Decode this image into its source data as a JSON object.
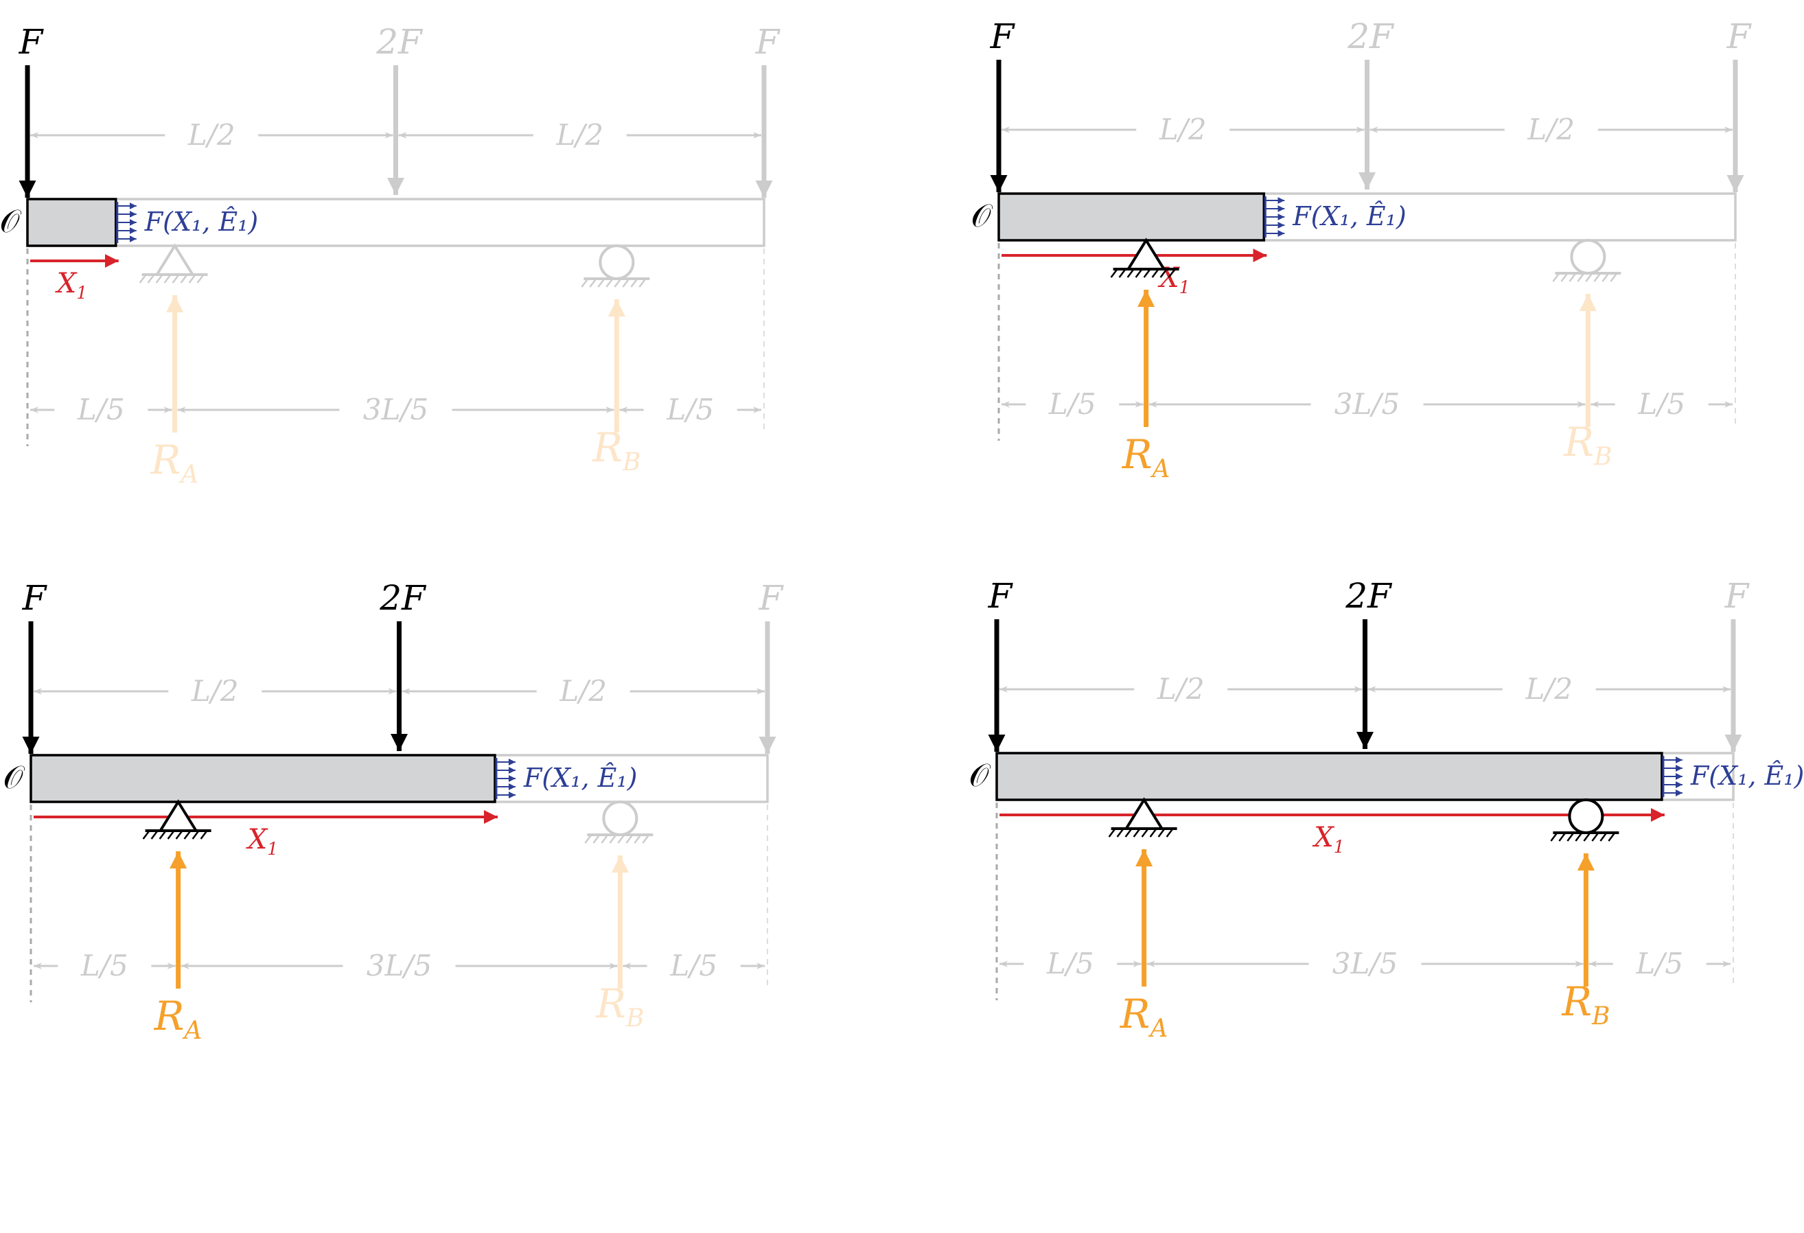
{
  "colors": {
    "load": "#000000",
    "faded": "#cccccc",
    "reaction": "#f5a02a",
    "reaction_faded": "#fde5c8",
    "coord": "#d8232a",
    "internal": "#2d3f96",
    "beam_fill": "#d3d4d6"
  },
  "labels": {
    "origin": "𝒪",
    "internal_force": "F(X₁, Ê₁)",
    "x_coord": "X₁",
    "half_span": "L/2",
    "fifth": "L/5",
    "three_fifths": "3L/5",
    "reaction_a": "RA",
    "reaction_b": "RB"
  },
  "panels": [
    {
      "cut_fraction": 0.12,
      "loads": [
        {
          "label": "F",
          "position": 0.0,
          "active": true
        },
        {
          "label": "2F",
          "position": 0.5,
          "active": false
        },
        {
          "label": "F",
          "position": 1.0,
          "active": false
        }
      ],
      "supports": [
        {
          "type": "pin",
          "position": 0.2,
          "active": false
        },
        {
          "type": "roller",
          "position": 0.8,
          "active": false
        }
      ]
    },
    {
      "cut_fraction": 0.36,
      "loads": [
        {
          "label": "F",
          "position": 0.0,
          "active": true
        },
        {
          "label": "2F",
          "position": 0.5,
          "active": false
        },
        {
          "label": "F",
          "position": 1.0,
          "active": false
        }
      ],
      "supports": [
        {
          "type": "pin",
          "position": 0.2,
          "active": true
        },
        {
          "type": "roller",
          "position": 0.8,
          "active": false
        }
      ]
    },
    {
      "cut_fraction": 0.63,
      "loads": [
        {
          "label": "F",
          "position": 0.0,
          "active": true
        },
        {
          "label": "2F",
          "position": 0.5,
          "active": true
        },
        {
          "label": "F",
          "position": 1.0,
          "active": false
        }
      ],
      "supports": [
        {
          "type": "pin",
          "position": 0.2,
          "active": true
        },
        {
          "type": "roller",
          "position": 0.8,
          "active": false
        }
      ]
    },
    {
      "cut_fraction": 0.903,
      "loads": [
        {
          "label": "F",
          "position": 0.0,
          "active": true
        },
        {
          "label": "2F",
          "position": 0.5,
          "active": true
        },
        {
          "label": "F",
          "position": 1.0,
          "active": false
        }
      ],
      "supports": [
        {
          "type": "pin",
          "position": 0.2,
          "active": true
        },
        {
          "type": "roller",
          "position": 0.8,
          "active": true
        }
      ]
    }
  ]
}
